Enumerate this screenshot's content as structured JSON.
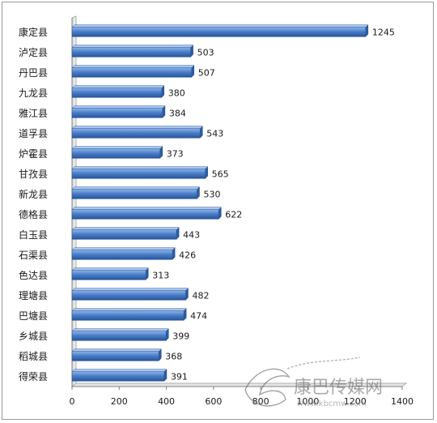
{
  "chart_data": {
    "type": "bar",
    "orientation": "horizontal",
    "categories": [
      "康定县",
      "泸定县",
      "丹巴县",
      "九龙县",
      "雅江县",
      "道孚县",
      "炉霍县",
      "甘孜县",
      "新龙县",
      "德格县",
      "白玉县",
      "石渠县",
      "色达县",
      "理塘县",
      "巴塘县",
      "乡城县",
      "稻城县",
      "得荣县"
    ],
    "values": [
      1245,
      503,
      507,
      380,
      384,
      543,
      373,
      565,
      530,
      622,
      443,
      426,
      313,
      482,
      474,
      399,
      368,
      391
    ],
    "xlim": [
      0,
      1400
    ],
    "xticks": [
      0,
      200,
      400,
      600,
      800,
      1000,
      1200,
      1400
    ],
    "title": "",
    "xlabel": "",
    "ylabel": "",
    "grid": false,
    "legend": "none",
    "bar_color": "#4a7ec9"
  },
  "watermark": {
    "text": "康巴传媒网",
    "url": "www.kbcmw.com"
  }
}
